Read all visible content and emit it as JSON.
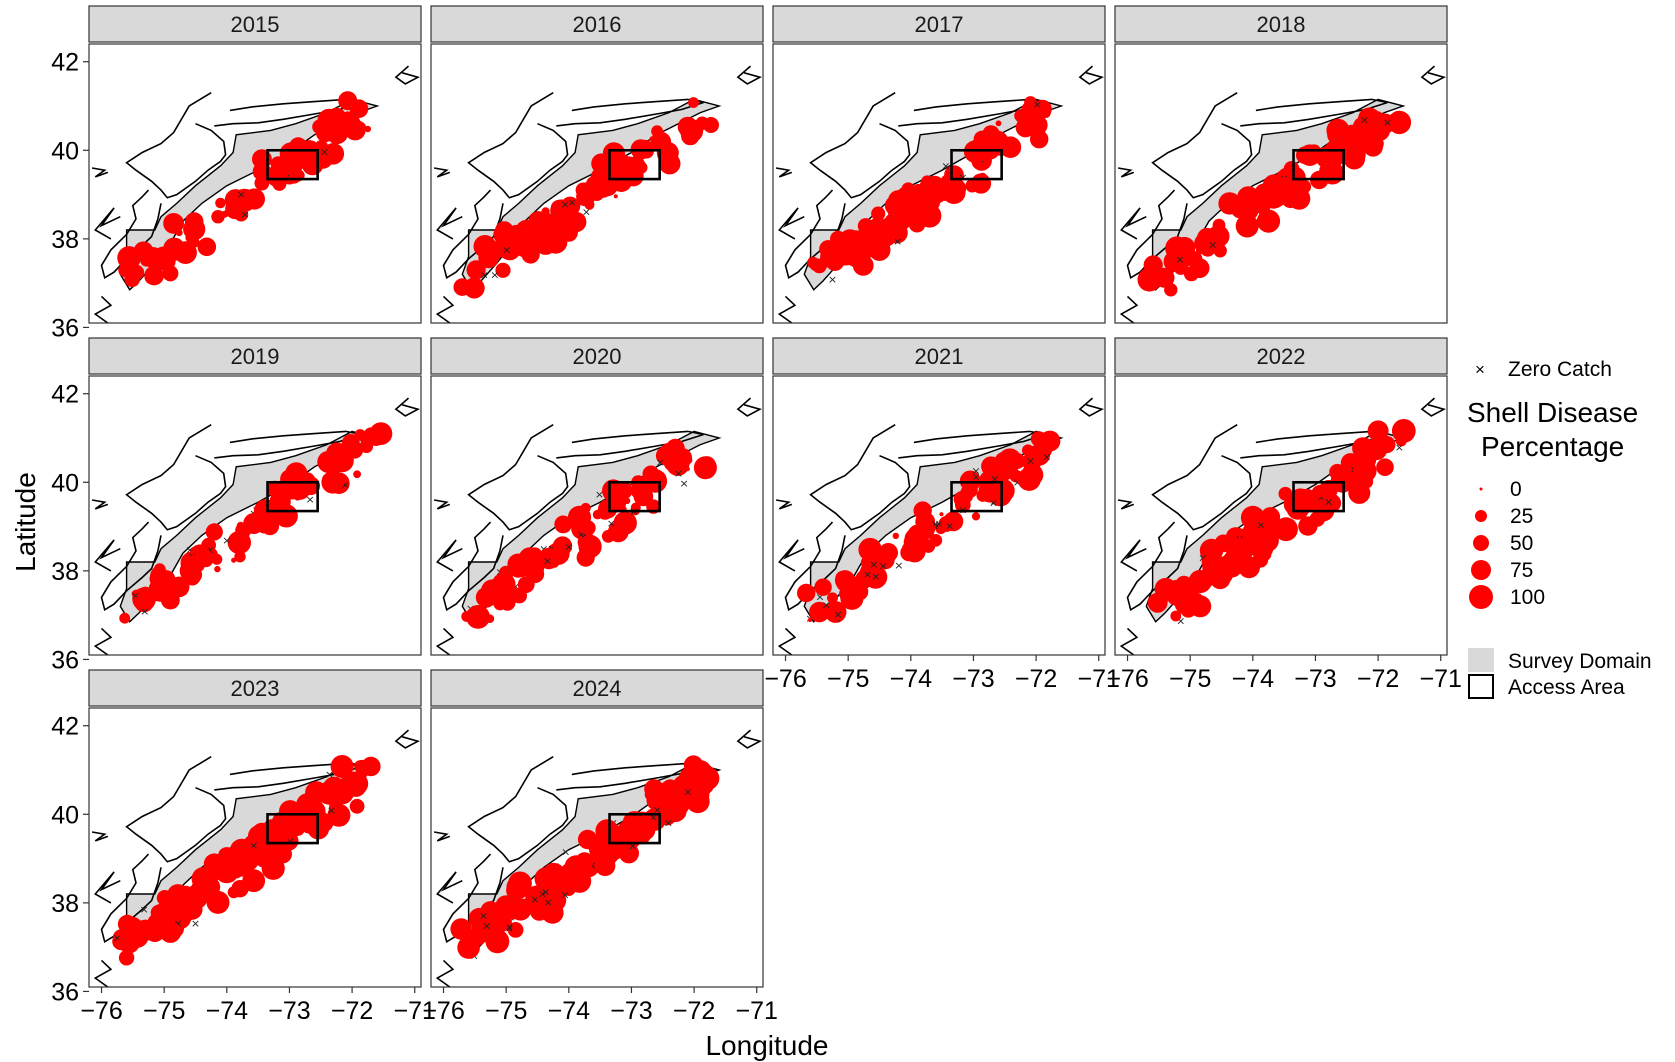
{
  "figure": {
    "x_axis_title": "Longitude",
    "y_axis_title": "Latitude"
  },
  "chart_data": {
    "type": "scatter",
    "facet_variable": "year",
    "panels": [
      "2015",
      "2016",
      "2017",
      "2018",
      "2019",
      "2020",
      "2021",
      "2022",
      "2023",
      "2024"
    ],
    "xlim": [
      -76.2,
      -70.9
    ],
    "ylim": [
      36.1,
      42.4
    ],
    "x_ticks": [
      -76,
      -75,
      -74,
      -73,
      -72,
      -71
    ],
    "x_tick_labels": [
      "−76",
      "−75",
      "−74",
      "−73",
      "−72",
      "−71"
    ],
    "y_ticks": [
      36,
      38,
      40,
      42
    ],
    "y_tick_labels": [
      "36",
      "38",
      "40",
      "42"
    ],
    "access_area": {
      "lon": [
        -73.35,
        -72.55
      ],
      "lat": [
        39.35,
        40.0
      ]
    },
    "colors": {
      "points": "#ff0000",
      "survey_domain_fill": "#d9d9d9",
      "strip_fill": "#d9d9d9",
      "coastline": "#000000"
    },
    "grid": false,
    "size_scale": {
      "values": [
        0,
        25,
        50,
        75,
        100
      ]
    }
  },
  "legend": {
    "zero_catch_label": "Zero Catch",
    "zero_catch_symbol": "×",
    "size_title_line1": "Shell Disease",
    "size_title_line2": "Percentage",
    "size_labels": [
      "0",
      "25",
      "50",
      "75",
      "100"
    ],
    "survey_domain_label": "Survey Domain",
    "access_area_label": "Access Area",
    "placement": "right"
  }
}
